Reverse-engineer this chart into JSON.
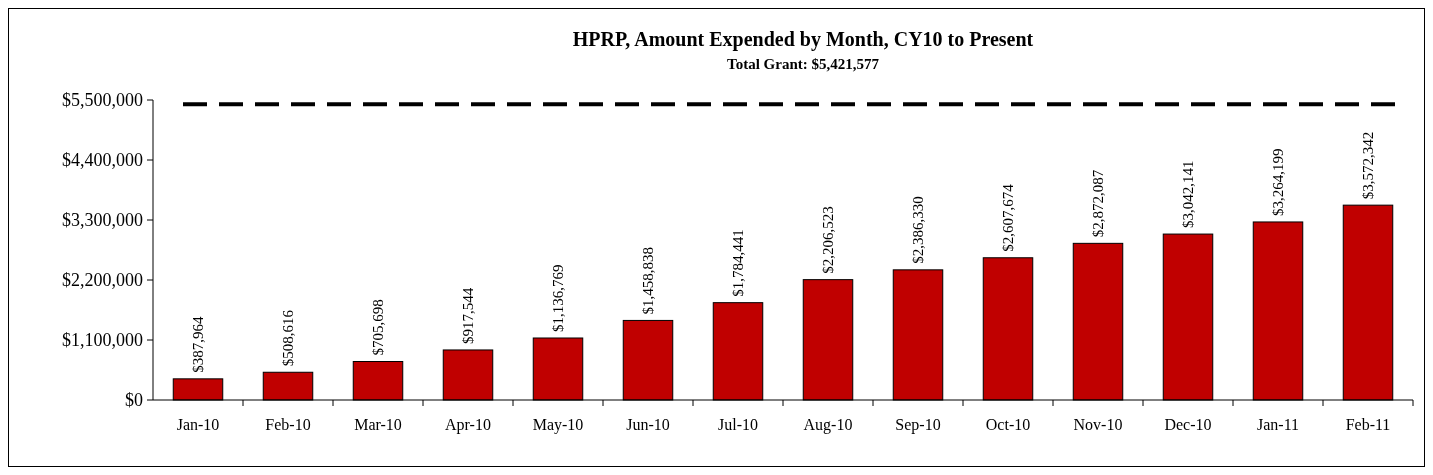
{
  "chart_data": {
    "type": "bar",
    "title": "HPRP, Amount Expended by Month, CY10 to Present",
    "subtitle": "Total Grant: $5,421,577",
    "categories": [
      "Jan-10",
      "Feb-10",
      "Mar-10",
      "Apr-10",
      "May-10",
      "Jun-10",
      "Jul-10",
      "Aug-10",
      "Sep-10",
      "Oct-10",
      "Nov-10",
      "Dec-10",
      "Jan-11",
      "Feb-11"
    ],
    "values": [
      387964,
      508616,
      705698,
      917544,
      1136769,
      1458838,
      1784441,
      2206523,
      2386330,
      2607674,
      2872087,
      3042141,
      3264199,
      3572342
    ],
    "value_labels": [
      "$387,964",
      "$508,616",
      "$705,698",
      "$917,544",
      "$1,136,769",
      "$1,458,838",
      "$1,784,441",
      "$2,206,523",
      "$2,386,330",
      "$2,607,674",
      "$2,872,087",
      "$3,042,141",
      "$3,264,199",
      "$3,572,342"
    ],
    "color": "#c00000",
    "ylim": [
      0,
      5500000
    ],
    "yticks": [
      {
        "value": 0,
        "label": "$0"
      },
      {
        "value": 1100000,
        "label": "$1,100,000"
      },
      {
        "value": 2200000,
        "label": "$2,200,000"
      },
      {
        "value": 3300000,
        "label": "$3,300,000"
      },
      {
        "value": 4400000,
        "label": "$4,400,000"
      },
      {
        "value": 5500000,
        "label": "$5,500,000"
      }
    ],
    "ref_lines": [
      {
        "axis": "y",
        "value": 5421577,
        "color": "#000000",
        "line_style": "dashed"
      }
    ],
    "grid": false
  }
}
